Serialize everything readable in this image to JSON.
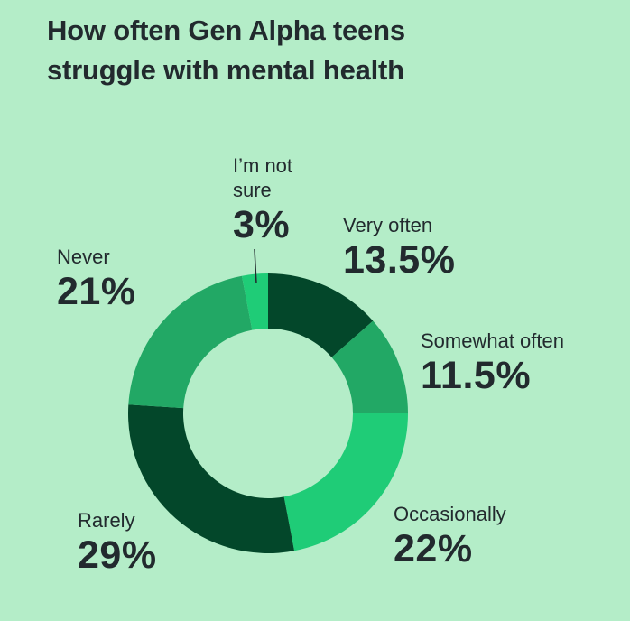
{
  "chart_data": {
    "type": "pie",
    "variant": "donut",
    "title_lines": [
      "How often Gen Alpha teens",
      "struggle with mental health"
    ],
    "slices": [
      {
        "label": "Very often",
        "value": 13.5,
        "display": "13.5%",
        "color": "#03472a"
      },
      {
        "label": "Somewhat often",
        "value": 11.5,
        "display": "11.5%",
        "color": "#22a865"
      },
      {
        "label": "Occasionally",
        "value": 22,
        "display": "22%",
        "color": "#1fcc77"
      },
      {
        "label": "Rarely",
        "value": 29,
        "display": "29%",
        "color": "#03472a"
      },
      {
        "label": "Never",
        "value": 21,
        "display": "21%",
        "color": "#22a865"
      },
      {
        "label": "I’m not sure",
        "label_lines": [
          "I’m not",
          "sure"
        ],
        "value": 3,
        "display": "3%",
        "color": "#1fcc77"
      }
    ],
    "legend": "none",
    "grid": false
  },
  "colors": {
    "background": "#b4edc8",
    "text": "#222a2e"
  }
}
